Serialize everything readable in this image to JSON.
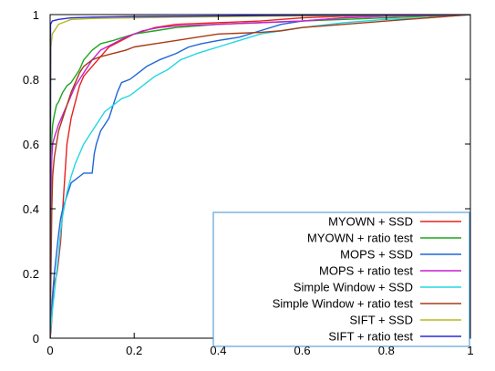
{
  "chart_data": {
    "type": "line",
    "title": "",
    "xlabel": "",
    "ylabel": "",
    "xlim": [
      0,
      1
    ],
    "ylim": [
      0,
      1
    ],
    "grid": false,
    "legend_position": "bottom-right",
    "x_ticks": [
      "0",
      "0.2",
      "0.4",
      "0.6",
      "0.8",
      "1"
    ],
    "y_ticks": [
      "0",
      "0.2",
      "0.4",
      "0.6",
      "0.8",
      "1"
    ],
    "series": [
      {
        "name": "MYOWN + SSD",
        "color": "#e8201f",
        "points": [
          [
            0,
            0
          ],
          [
            0.002,
            0.02
          ],
          [
            0.004,
            0.06
          ],
          [
            0.006,
            0.12
          ],
          [
            0.008,
            0.16
          ],
          [
            0.012,
            0.18
          ],
          [
            0.016,
            0.2
          ],
          [
            0.02,
            0.24
          ],
          [
            0.025,
            0.3
          ],
          [
            0.03,
            0.4
          ],
          [
            0.035,
            0.5
          ],
          [
            0.04,
            0.6
          ],
          [
            0.05,
            0.68
          ],
          [
            0.06,
            0.73
          ],
          [
            0.07,
            0.78
          ],
          [
            0.08,
            0.81
          ],
          [
            0.1,
            0.84
          ],
          [
            0.12,
            0.87
          ],
          [
            0.14,
            0.9
          ],
          [
            0.17,
            0.92
          ],
          [
            0.2,
            0.94
          ],
          [
            0.25,
            0.96
          ],
          [
            0.3,
            0.97
          ],
          [
            0.4,
            0.975
          ],
          [
            0.5,
            0.98
          ],
          [
            0.6,
            0.99
          ],
          [
            0.7,
            0.995
          ],
          [
            0.8,
            0.997
          ],
          [
            1,
            1
          ]
        ]
      },
      {
        "name": "MYOWN + ratio test",
        "color": "#1ca51c",
        "points": [
          [
            0,
            0
          ],
          [
            0.002,
            0.5
          ],
          [
            0.004,
            0.62
          ],
          [
            0.006,
            0.66
          ],
          [
            0.01,
            0.69
          ],
          [
            0.015,
            0.72
          ],
          [
            0.02,
            0.73
          ],
          [
            0.03,
            0.76
          ],
          [
            0.04,
            0.78
          ],
          [
            0.05,
            0.79
          ],
          [
            0.06,
            0.81
          ],
          [
            0.07,
            0.83
          ],
          [
            0.08,
            0.86
          ],
          [
            0.1,
            0.89
          ],
          [
            0.12,
            0.91
          ],
          [
            0.15,
            0.92
          ],
          [
            0.2,
            0.94
          ],
          [
            0.25,
            0.95
          ],
          [
            0.3,
            0.96
          ],
          [
            0.4,
            0.97
          ],
          [
            0.5,
            0.975
          ],
          [
            0.6,
            0.98
          ],
          [
            0.7,
            0.985
          ],
          [
            0.8,
            0.99
          ],
          [
            0.9,
            0.995
          ],
          [
            1,
            1
          ]
        ]
      },
      {
        "name": "MOPS + SSD",
        "color": "#1f66d6",
        "points": [
          [
            0,
            0
          ],
          [
            0.002,
            0.06
          ],
          [
            0.005,
            0.12
          ],
          [
            0.01,
            0.2
          ],
          [
            0.015,
            0.26
          ],
          [
            0.02,
            0.32
          ],
          [
            0.025,
            0.37
          ],
          [
            0.03,
            0.4
          ],
          [
            0.04,
            0.44
          ],
          [
            0.05,
            0.48
          ],
          [
            0.06,
            0.49
          ],
          [
            0.07,
            0.5
          ],
          [
            0.08,
            0.51
          ],
          [
            0.1,
            0.51
          ],
          [
            0.105,
            0.57
          ],
          [
            0.11,
            0.6
          ],
          [
            0.12,
            0.64
          ],
          [
            0.13,
            0.66
          ],
          [
            0.14,
            0.68
          ],
          [
            0.15,
            0.72
          ],
          [
            0.16,
            0.76
          ],
          [
            0.17,
            0.79
          ],
          [
            0.19,
            0.8
          ],
          [
            0.21,
            0.82
          ],
          [
            0.23,
            0.84
          ],
          [
            0.26,
            0.86
          ],
          [
            0.3,
            0.88
          ],
          [
            0.33,
            0.9
          ],
          [
            0.36,
            0.91
          ],
          [
            0.4,
            0.92
          ],
          [
            0.45,
            0.93
          ],
          [
            0.5,
            0.95
          ],
          [
            0.55,
            0.97
          ],
          [
            0.6,
            0.98
          ],
          [
            0.7,
            0.99
          ],
          [
            0.8,
            0.995
          ],
          [
            1,
            1
          ]
        ]
      },
      {
        "name": "MOPS + ratio test",
        "color": "#c81ecf",
        "points": [
          [
            0,
            0
          ],
          [
            0.002,
            0.42
          ],
          [
            0.004,
            0.56
          ],
          [
            0.006,
            0.6
          ],
          [
            0.01,
            0.62
          ],
          [
            0.015,
            0.64
          ],
          [
            0.02,
            0.66
          ],
          [
            0.03,
            0.69
          ],
          [
            0.04,
            0.72
          ],
          [
            0.05,
            0.75
          ],
          [
            0.06,
            0.78
          ],
          [
            0.08,
            0.82
          ],
          [
            0.1,
            0.86
          ],
          [
            0.12,
            0.89
          ],
          [
            0.15,
            0.91
          ],
          [
            0.18,
            0.93
          ],
          [
            0.22,
            0.95
          ],
          [
            0.26,
            0.96
          ],
          [
            0.3,
            0.965
          ],
          [
            0.4,
            0.97
          ],
          [
            0.5,
            0.975
          ],
          [
            0.6,
            0.98
          ],
          [
            0.7,
            0.99
          ],
          [
            0.8,
            0.995
          ],
          [
            1,
            1
          ]
        ]
      },
      {
        "name": "Simple Window + SSD",
        "color": "#22d6e2",
        "points": [
          [
            0,
            0
          ],
          [
            0.005,
            0.08
          ],
          [
            0.01,
            0.14
          ],
          [
            0.015,
            0.2
          ],
          [
            0.02,
            0.26
          ],
          [
            0.025,
            0.33
          ],
          [
            0.03,
            0.38
          ],
          [
            0.04,
            0.45
          ],
          [
            0.05,
            0.5
          ],
          [
            0.06,
            0.54
          ],
          [
            0.07,
            0.57
          ],
          [
            0.08,
            0.6
          ],
          [
            0.09,
            0.62
          ],
          [
            0.1,
            0.64
          ],
          [
            0.11,
            0.66
          ],
          [
            0.12,
            0.68
          ],
          [
            0.13,
            0.7
          ],
          [
            0.15,
            0.72
          ],
          [
            0.17,
            0.74
          ],
          [
            0.19,
            0.75
          ],
          [
            0.21,
            0.77
          ],
          [
            0.23,
            0.79
          ],
          [
            0.25,
            0.81
          ],
          [
            0.28,
            0.83
          ],
          [
            0.31,
            0.86
          ],
          [
            0.35,
            0.88
          ],
          [
            0.4,
            0.9
          ],
          [
            0.45,
            0.92
          ],
          [
            0.5,
            0.94
          ],
          [
            0.55,
            0.95
          ],
          [
            0.6,
            0.96
          ],
          [
            0.7,
            0.975
          ],
          [
            0.8,
            0.985
          ],
          [
            0.9,
            0.99
          ],
          [
            1,
            1
          ]
        ]
      },
      {
        "name": "Simple Window + ratio test",
        "color": "#a83a16",
        "points": [
          [
            0,
            0
          ],
          [
            0.002,
            0.2
          ],
          [
            0.004,
            0.4
          ],
          [
            0.006,
            0.5
          ],
          [
            0.01,
            0.56
          ],
          [
            0.015,
            0.6
          ],
          [
            0.02,
            0.64
          ],
          [
            0.03,
            0.68
          ],
          [
            0.04,
            0.72
          ],
          [
            0.05,
            0.76
          ],
          [
            0.06,
            0.79
          ],
          [
            0.07,
            0.82
          ],
          [
            0.08,
            0.84
          ],
          [
            0.1,
            0.86
          ],
          [
            0.12,
            0.87
          ],
          [
            0.15,
            0.88
          ],
          [
            0.18,
            0.89
          ],
          [
            0.2,
            0.9
          ],
          [
            0.25,
            0.91
          ],
          [
            0.3,
            0.92
          ],
          [
            0.35,
            0.93
          ],
          [
            0.4,
            0.94
          ],
          [
            0.5,
            0.945
          ],
          [
            0.55,
            0.95
          ],
          [
            0.6,
            0.96
          ],
          [
            0.7,
            0.97
          ],
          [
            0.8,
            0.98
          ],
          [
            0.9,
            0.99
          ],
          [
            1,
            1
          ]
        ]
      },
      {
        "name": "SIFT + SSD",
        "color": "#b8b81e",
        "points": [
          [
            0,
            0
          ],
          [
            0.002,
            0.9
          ],
          [
            0.005,
            0.94
          ],
          [
            0.01,
            0.95
          ],
          [
            0.015,
            0.96
          ],
          [
            0.02,
            0.97
          ],
          [
            0.03,
            0.975
          ],
          [
            0.04,
            0.98
          ],
          [
            0.05,
            0.985
          ],
          [
            0.1,
            0.988
          ],
          [
            0.2,
            0.99
          ],
          [
            0.3,
            0.992
          ],
          [
            0.5,
            0.995
          ],
          [
            0.7,
            0.997
          ],
          [
            1,
            1
          ]
        ]
      },
      {
        "name": "SIFT + ratio test",
        "color": "#2a2ad6",
        "points": [
          [
            0,
            0
          ],
          [
            0.001,
            0.97
          ],
          [
            0.005,
            0.98
          ],
          [
            0.02,
            0.985
          ],
          [
            0.05,
            0.99
          ],
          [
            0.1,
            0.992
          ],
          [
            0.2,
            0.994
          ],
          [
            0.4,
            0.996
          ],
          [
            0.6,
            0.998
          ],
          [
            0.8,
            0.999
          ],
          [
            1,
            1
          ]
        ]
      }
    ]
  }
}
